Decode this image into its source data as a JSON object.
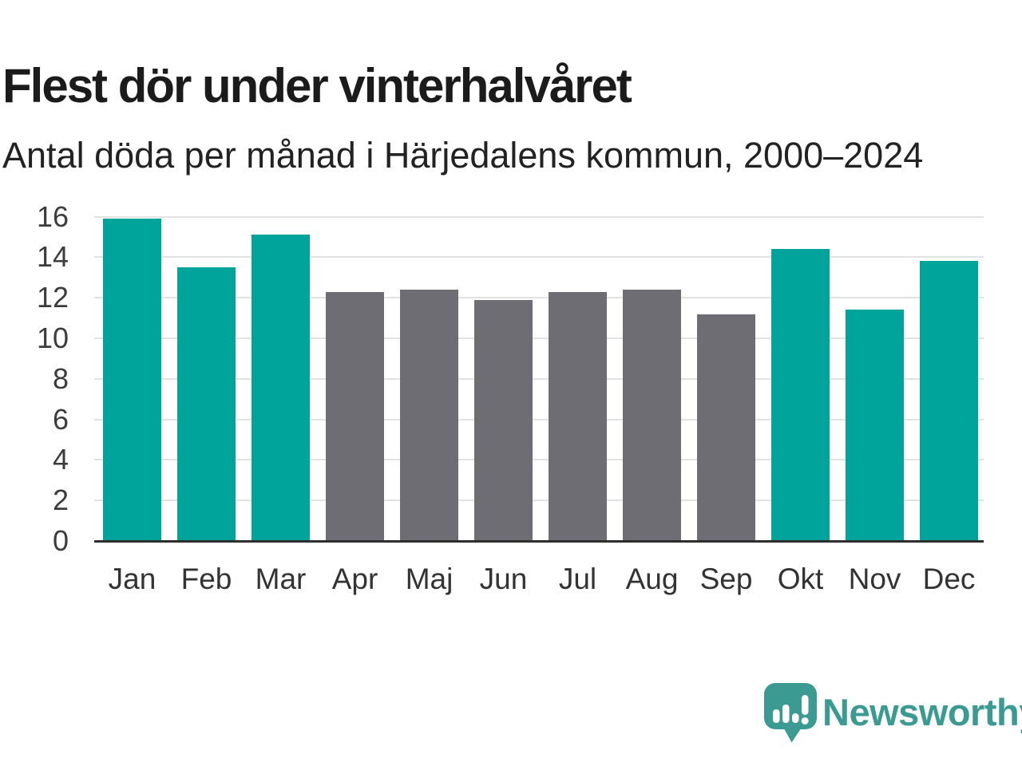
{
  "header": {
    "title": "Flest dör under vinterhalvåret",
    "subtitle": "Antal döda per månad i Härjedalens kommun, 2000–2024"
  },
  "chart_data": {
    "type": "bar",
    "categories": [
      "Jan",
      "Feb",
      "Mar",
      "Apr",
      "Maj",
      "Jun",
      "Jul",
      "Aug",
      "Sep",
      "Okt",
      "Nov",
      "Dec"
    ],
    "values": [
      15.9,
      13.5,
      15.1,
      12.3,
      12.4,
      11.9,
      12.3,
      12.4,
      11.2,
      14.4,
      11.4,
      13.8
    ],
    "bar_roles": [
      "winter",
      "winter",
      "winter",
      "summer",
      "summer",
      "summer",
      "summer",
      "summer",
      "summer",
      "winter",
      "winter",
      "winter"
    ],
    "title": "Flest dör under vinterhalvåret",
    "subtitle": "Antal döda per månad i Härjedalens kommun, 2000–2024",
    "xlabel": "",
    "ylabel": "",
    "ylim": [
      0,
      16
    ],
    "ytick_step": 2,
    "grid": true,
    "legend": "none",
    "colors": {
      "winter": "#00a49a",
      "summer": "#6e6d73",
      "gridline": "#e2e2e2",
      "axis": "#2e2e2e",
      "tick_text": "#3c3c3c"
    }
  },
  "footer": {
    "brand": "Newsworthy",
    "brand_color": "#3b9b93",
    "logo_icon": "newsworthy-speech-bubble-chart-icon"
  }
}
